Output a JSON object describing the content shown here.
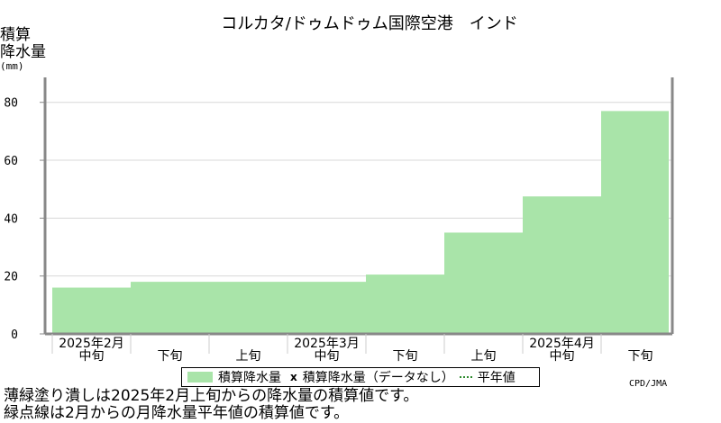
{
  "page": {
    "title": "コルカタ/ドゥムドゥム国際空港　インド",
    "ylabel_line1": "積算",
    "ylabel_line2": "降水量",
    "ylabel_unit": "(mm)",
    "credit": "CPD/JMA",
    "legend": {
      "series_label": "積算降水量",
      "mark": "x",
      "missing_label": "積算降水量（データなし）",
      "normal_label": "平年値"
    },
    "notes": [
      "薄緑塗り潰しは2025年2月上旬からの降水量の積算値です。",
      "緑点線は2月からの月降水量平年値の積算値です。"
    ]
  },
  "chart_data": {
    "type": "area",
    "title": "コルカタ/ドゥムドゥム国際空港　インド",
    "ylabel": "積算降水量 (mm)",
    "ylim": [
      0,
      88
    ],
    "yticks": [
      0,
      20,
      40,
      60,
      80
    ],
    "grid": true,
    "months": [
      "2025年2月",
      "2025年3月",
      "2025年4月"
    ],
    "categories": [
      "中旬",
      "下旬",
      "上旬",
      "中旬",
      "下旬",
      "上旬",
      "中旬",
      "下旬"
    ],
    "series": [
      {
        "name": "積算降水量",
        "values": [
          16,
          18,
          18,
          18,
          20.5,
          35,
          47.5,
          77
        ],
        "color": "#a9e4a9"
      }
    ]
  }
}
